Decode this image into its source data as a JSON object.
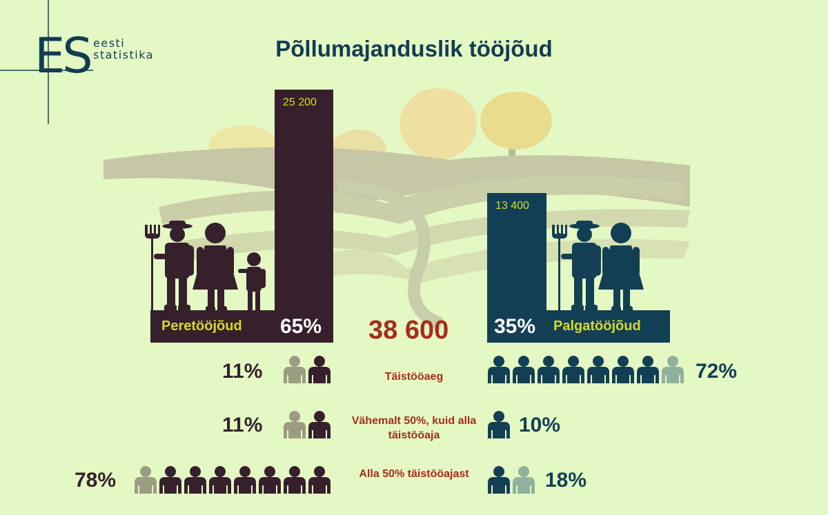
{
  "title": "Põllumajanduslik tööjõud",
  "logo": {
    "line1": "eesti",
    "line2": "statistika",
    "mark": "ES"
  },
  "total": "38 600",
  "colors": {
    "family": "#35202b",
    "hired": "#133f55",
    "family_light": "#9c9c82",
    "hired_light": "#8fb19d",
    "accent_red": "#a72c1d",
    "label_yellow": "#d4dc26",
    "background": "#e4f8c4"
  },
  "family": {
    "label": "Peretööjõud",
    "value_label": "25 200",
    "value": 25200,
    "percent": "65%"
  },
  "hired": {
    "label": "Palgatööjõud",
    "value_label": "13 400",
    "value": 13400,
    "percent": "35%"
  },
  "rows": [
    {
      "category": "Täistööaeg",
      "family_percent": "11%",
      "family_icons": {
        "light": 1,
        "dark": 1
      },
      "hired_percent": "72%",
      "hired_icons": {
        "dark": 7,
        "light": 1
      }
    },
    {
      "category": "Vähemalt 50%, kuid alla täistööaja",
      "family_percent": "11%",
      "family_icons": {
        "light": 1,
        "dark": 1
      },
      "hired_percent": "10%",
      "hired_icons": {
        "dark": 1,
        "light": 0
      }
    },
    {
      "category": "Alla 50% täistööajast",
      "family_percent": "78%",
      "family_icons": {
        "light": 1,
        "dark": 7
      },
      "hired_percent": "18%",
      "hired_icons": {
        "dark": 1,
        "light": 1
      }
    }
  ]
}
